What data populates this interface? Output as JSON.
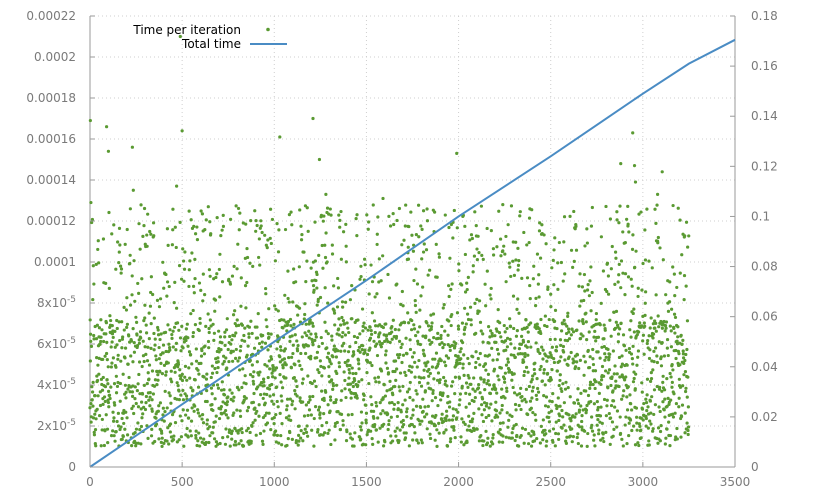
{
  "chart_data": {
    "type": "scatter",
    "title": "",
    "xlabel": "",
    "ylabel": "",
    "y2label": "",
    "xlim": [
      0,
      3500
    ],
    "ylim": [
      0,
      0.00022
    ],
    "y2lim": [
      0,
      0.18
    ],
    "grid": true,
    "legend_position": "top-left",
    "x_ticks": [
      "0",
      "500",
      "1000",
      "1500",
      "2000",
      "2500",
      "3000",
      "3500"
    ],
    "x_tick_values": [
      0,
      500,
      1000,
      1500,
      2000,
      2500,
      3000,
      3500
    ],
    "y_ticks": [
      "0",
      "2x10-5",
      "4x10-5",
      "6x10-5",
      "8x10-5",
      "0.0001",
      "0.00012",
      "0.00014",
      "0.00016",
      "0.00018",
      "0.0002",
      "0.00022"
    ],
    "y_tick_display": [
      {
        "base": "0",
        "exp": ""
      },
      {
        "base": "2x10",
        "exp": "-5"
      },
      {
        "base": "4x10",
        "exp": "-5"
      },
      {
        "base": "6x10",
        "exp": "-5"
      },
      {
        "base": "8x10",
        "exp": "-5"
      },
      {
        "base": "0.0001",
        "exp": ""
      },
      {
        "base": "0.00012",
        "exp": ""
      },
      {
        "base": "0.00014",
        "exp": ""
      },
      {
        "base": "0.00016",
        "exp": ""
      },
      {
        "base": "0.00018",
        "exp": ""
      },
      {
        "base": "0.0002",
        "exp": ""
      },
      {
        "base": "0.00022",
        "exp": ""
      }
    ],
    "y_tick_values": [
      0,
      2e-05,
      4e-05,
      6e-05,
      8e-05,
      0.0001,
      0.00012,
      0.00014,
      0.00016,
      0.00018,
      0.0002,
      0.00022
    ],
    "y2_ticks": [
      "0",
      "0.02",
      "0.04",
      "0.06",
      "0.08",
      "0.1",
      "0.12",
      "0.14",
      "0.16",
      "0.18"
    ],
    "y2_tick_values": [
      0,
      0.02,
      0.04,
      0.06,
      0.08,
      0.1,
      0.12,
      0.14,
      0.16,
      0.18
    ],
    "series": [
      {
        "name": "Time per iteration",
        "kind": "scatter",
        "axis": "left",
        "color": "#5a9a32",
        "count": 3250,
        "distribution": {
          "dense_band_range": [
            1e-05,
            7.2e-05
          ],
          "sparse_range": [
            7.2e-05,
            0.000128
          ],
          "outliers": [
            [
              2,
              0.000169
            ],
            [
              5,
              0.000129
            ],
            [
              90,
              0.000166
            ],
            [
              100,
              0.000154
            ],
            [
              230,
              0.000156
            ],
            [
              235,
              0.000135
            ],
            [
              470,
              0.000137
            ],
            [
              490,
              0.00021
            ],
            [
              500,
              0.000164
            ],
            [
              1030,
              0.000161
            ],
            [
              1210,
              0.00017
            ],
            [
              1245,
              0.00015
            ],
            [
              1280,
              0.000133
            ],
            [
              1590,
              0.000131
            ],
            [
              1810,
              0.000125
            ],
            [
              1990,
              0.000153
            ],
            [
              2240,
              0.000128
            ],
            [
              2880,
              0.000148
            ],
            [
              2945,
              0.000163
            ],
            [
              2955,
              0.000147
            ],
            [
              2960,
              0.000139
            ],
            [
              3080,
              0.000133
            ],
            [
              3105,
              0.000144
            ]
          ]
        }
      },
      {
        "name": "Total time",
        "kind": "line",
        "axis": "right",
        "color": "#4a8cc4",
        "x": [
          0,
          500,
          1000,
          1500,
          2000,
          2500,
          3000,
          3250,
          3500
        ],
        "y": [
          0,
          0.025,
          0.05,
          0.0745,
          0.1,
          0.124,
          0.149,
          0.161,
          0.1705
        ]
      }
    ]
  }
}
